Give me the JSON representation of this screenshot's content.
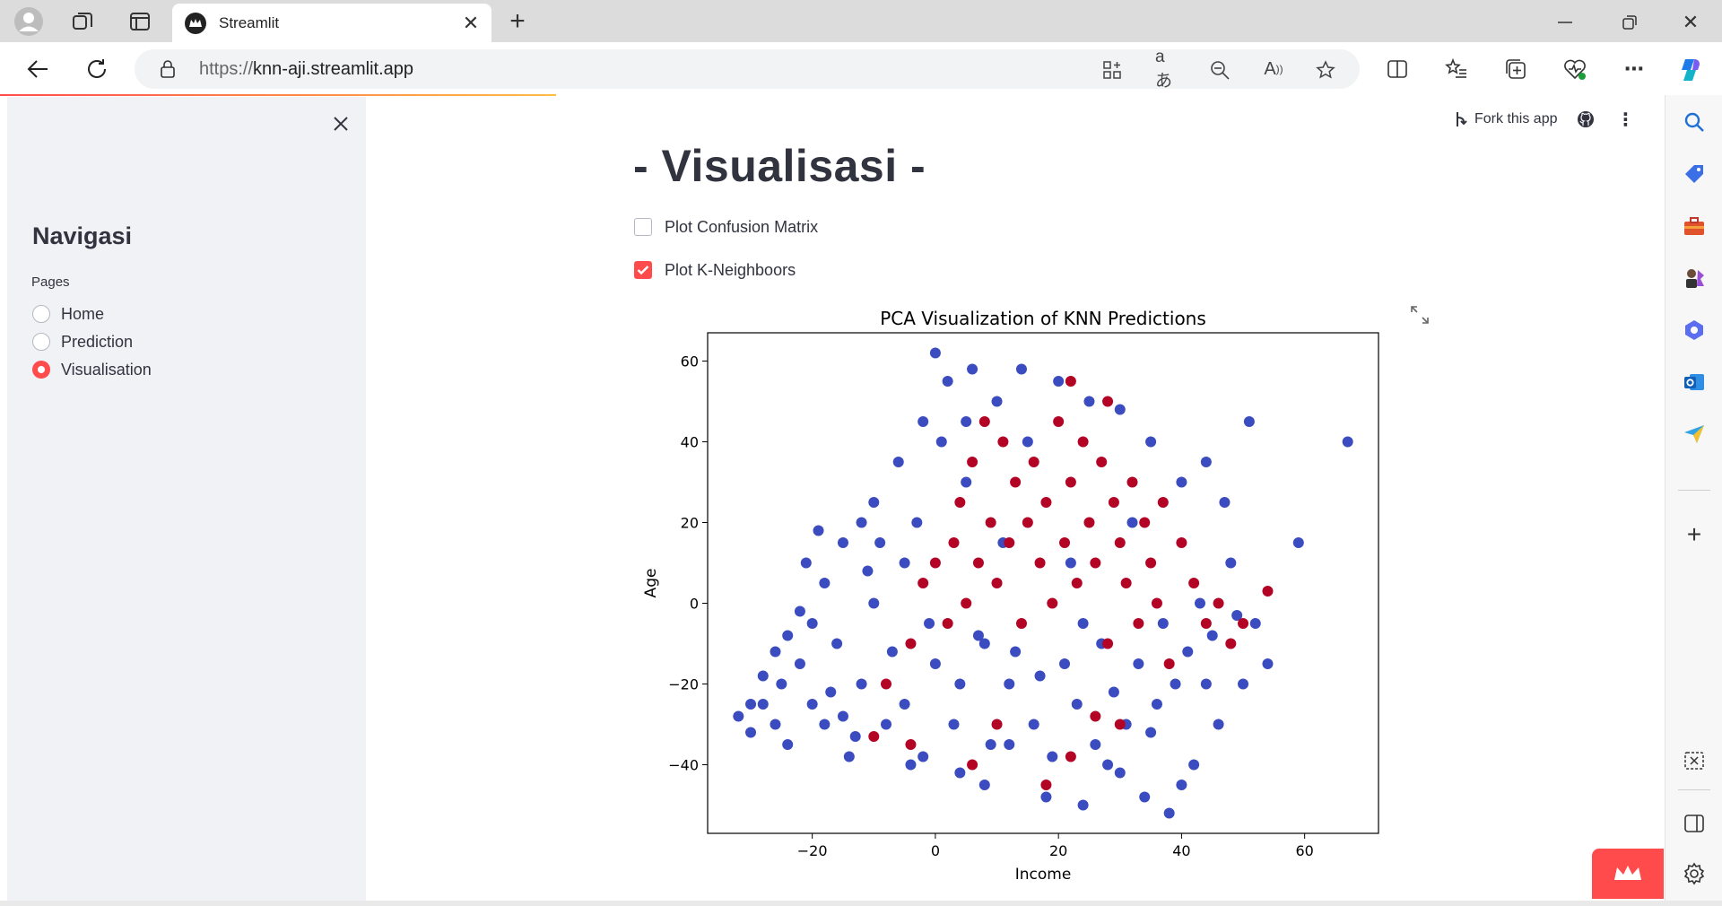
{
  "browser": {
    "tab_title": "Streamlit",
    "url_scheme": "https://",
    "url_host": "knn-aji.streamlit.app"
  },
  "toolbar": {
    "fork_label": "Fork this app"
  },
  "sidebar": {
    "title": "Navigasi",
    "pages_label": "Pages",
    "pages": [
      {
        "label": "Home",
        "selected": false
      },
      {
        "label": "Prediction",
        "selected": false
      },
      {
        "label": "Visualisation",
        "selected": true
      }
    ]
  },
  "main": {
    "title": "- Visualisasi -",
    "checkboxes": [
      {
        "label": "Plot Confusion Matrix",
        "checked": false
      },
      {
        "label": "Plot K-Neighboors",
        "checked": true
      }
    ]
  },
  "colors": {
    "accent": "#ff4b4b",
    "class_blue": "#3b4cc0",
    "class_red": "#b40426"
  },
  "chart_data": {
    "type": "scatter",
    "title": "PCA Visualization of KNN Predictions",
    "xlabel": "Income",
    "ylabel": "Age",
    "xlim": [
      -37,
      72
    ],
    "ylim": [
      -57,
      67
    ],
    "xticks": [
      "−20",
      "0",
      "20",
      "40",
      "60"
    ],
    "xtick_values": [
      -20,
      0,
      20,
      40,
      60
    ],
    "yticks": [
      "−40",
      "−20",
      "0",
      "20",
      "40",
      "60"
    ],
    "ytick_values": [
      -40,
      -20,
      0,
      20,
      40,
      60
    ],
    "grid": false,
    "series": [
      {
        "color": "#3b4cc0",
        "points": [
          [
            -32,
            -28
          ],
          [
            -30,
            -32
          ],
          [
            -28,
            -25
          ],
          [
            -26,
            -30
          ],
          [
            -25,
            -20
          ],
          [
            -24,
            -35
          ],
          [
            -22,
            -15
          ],
          [
            -20,
            -25
          ],
          [
            -20,
            -5
          ],
          [
            -18,
            -30
          ],
          [
            -18,
            5
          ],
          [
            -16,
            -10
          ],
          [
            -15,
            15
          ],
          [
            -14,
            -38
          ],
          [
            -12,
            20
          ],
          [
            -12,
            -20
          ],
          [
            -10,
            25
          ],
          [
            -10,
            0
          ],
          [
            -8,
            -30
          ],
          [
            -6,
            35
          ],
          [
            -5,
            10
          ],
          [
            -4,
            -40
          ],
          [
            -2,
            45
          ],
          [
            0,
            62
          ],
          [
            0,
            -15
          ],
          [
            2,
            55
          ],
          [
            4,
            -42
          ],
          [
            5,
            30
          ],
          [
            6,
            58
          ],
          [
            8,
            -45
          ],
          [
            10,
            50
          ],
          [
            12,
            -20
          ],
          [
            14,
            58
          ],
          [
            15,
            40
          ],
          [
            18,
            -48
          ],
          [
            20,
            55
          ],
          [
            22,
            10
          ],
          [
            24,
            -50
          ],
          [
            25,
            50
          ],
          [
            28,
            -40
          ],
          [
            30,
            48
          ],
          [
            32,
            20
          ],
          [
            34,
            -48
          ],
          [
            35,
            40
          ],
          [
            38,
            -52
          ],
          [
            40,
            30
          ],
          [
            42,
            -40
          ],
          [
            44,
            35
          ],
          [
            46,
            -30
          ],
          [
            48,
            10
          ],
          [
            50,
            -20
          ],
          [
            51,
            45
          ],
          [
            52,
            -5
          ],
          [
            54,
            -15
          ],
          [
            59,
            15
          ],
          [
            67,
            40
          ],
          [
            -30,
            -25
          ],
          [
            -28,
            -18
          ],
          [
            -26,
            -12
          ],
          [
            -24,
            -8
          ],
          [
            -22,
            -2
          ],
          [
            -21,
            10
          ],
          [
            -19,
            18
          ],
          [
            -17,
            -22
          ],
          [
            -15,
            -28
          ],
          [
            -13,
            -33
          ],
          [
            -11,
            8
          ],
          [
            -9,
            15
          ],
          [
            -7,
            -12
          ],
          [
            -5,
            -25
          ],
          [
            -3,
            20
          ],
          [
            -1,
            -5
          ],
          [
            1,
            40
          ],
          [
            3,
            -30
          ],
          [
            5,
            45
          ],
          [
            7,
            -8
          ],
          [
            9,
            -35
          ],
          [
            11,
            15
          ],
          [
            13,
            -12
          ],
          [
            16,
            -30
          ],
          [
            19,
            -38
          ],
          [
            21,
            -15
          ],
          [
            23,
            -25
          ],
          [
            26,
            -35
          ],
          [
            27,
            -10
          ],
          [
            29,
            -22
          ],
          [
            31,
            -30
          ],
          [
            33,
            -15
          ],
          [
            36,
            -25
          ],
          [
            37,
            -5
          ],
          [
            39,
            -20
          ],
          [
            41,
            -12
          ],
          [
            43,
            0
          ],
          [
            45,
            -8
          ],
          [
            47,
            25
          ],
          [
            49,
            -3
          ],
          [
            -2,
            -38
          ],
          [
            4,
            -20
          ],
          [
            8,
            -10
          ],
          [
            12,
            -35
          ],
          [
            17,
            -18
          ],
          [
            24,
            -5
          ],
          [
            30,
            -42
          ],
          [
            35,
            -32
          ],
          [
            40,
            -45
          ],
          [
            44,
            -20
          ]
        ]
      },
      {
        "color": "#b40426",
        "points": [
          [
            -4,
            -10
          ],
          [
            -2,
            5
          ],
          [
            0,
            10
          ],
          [
            2,
            -5
          ],
          [
            3,
            15
          ],
          [
            4,
            25
          ],
          [
            5,
            0
          ],
          [
            6,
            35
          ],
          [
            7,
            10
          ],
          [
            8,
            45
          ],
          [
            9,
            20
          ],
          [
            10,
            5
          ],
          [
            11,
            40
          ],
          [
            12,
            15
          ],
          [
            13,
            30
          ],
          [
            14,
            -5
          ],
          [
            15,
            20
          ],
          [
            16,
            35
          ],
          [
            17,
            10
          ],
          [
            18,
            25
          ],
          [
            19,
            0
          ],
          [
            20,
            45
          ],
          [
            21,
            15
          ],
          [
            22,
            30
          ],
          [
            23,
            5
          ],
          [
            24,
            40
          ],
          [
            25,
            20
          ],
          [
            26,
            10
          ],
          [
            27,
            35
          ],
          [
            28,
            -10
          ],
          [
            29,
            25
          ],
          [
            30,
            15
          ],
          [
            31,
            5
          ],
          [
            32,
            30
          ],
          [
            33,
            -5
          ],
          [
            34,
            20
          ],
          [
            35,
            10
          ],
          [
            36,
            0
          ],
          [
            37,
            25
          ],
          [
            38,
            -15
          ],
          [
            40,
            15
          ],
          [
            42,
            5
          ],
          [
            44,
            -5
          ],
          [
            46,
            0
          ],
          [
            48,
            -10
          ],
          [
            50,
            -5
          ],
          [
            54,
            3
          ],
          [
            28,
            50
          ],
          [
            22,
            55
          ],
          [
            30,
            -30
          ],
          [
            10,
            -30
          ],
          [
            -4,
            -35
          ],
          [
            6,
            -40
          ],
          [
            18,
            -45
          ],
          [
            22,
            -38
          ],
          [
            26,
            -28
          ],
          [
            -8,
            -20
          ],
          [
            -10,
            -33
          ]
        ]
      }
    ]
  }
}
